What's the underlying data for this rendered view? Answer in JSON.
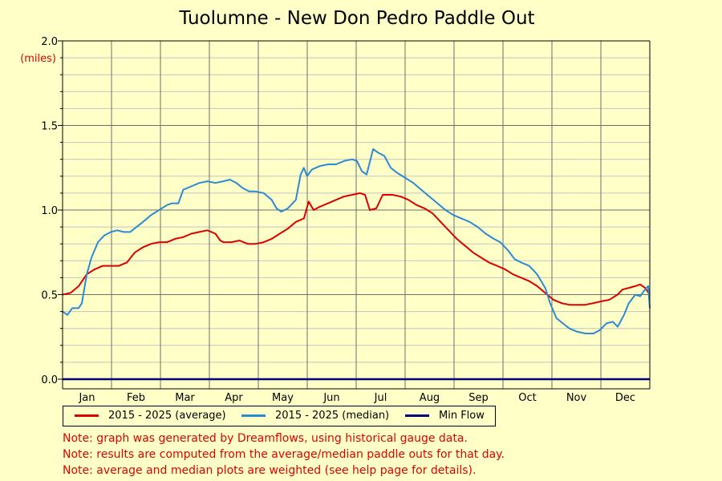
{
  "chart_data": {
    "type": "line",
    "title": "Tuolumne - New Don Pedro Paddle Out",
    "ylabel": "(miles)",
    "ylim": [
      0,
      2
    ],
    "yticks": [
      "0.0",
      "0.5",
      "1.0",
      "1.5",
      "2.0"
    ],
    "months": [
      "Jan",
      "Feb",
      "Mar",
      "Apr",
      "May",
      "Jun",
      "Jul",
      "Aug",
      "Sep",
      "Oct",
      "Nov",
      "Dec"
    ],
    "grid": true,
    "legend_position": "bottom",
    "series": [
      {
        "name": "2015 - 2025 (average)",
        "color": "#dd0000",
        "points": [
          [
            0,
            0.5
          ],
          [
            5,
            0.51
          ],
          [
            10,
            0.55
          ],
          [
            15,
            0.62
          ],
          [
            20,
            0.65
          ],
          [
            25,
            0.67
          ],
          [
            30,
            0.67
          ],
          [
            35,
            0.67
          ],
          [
            40,
            0.69
          ],
          [
            45,
            0.75
          ],
          [
            50,
            0.78
          ],
          [
            55,
            0.8
          ],
          [
            60,
            0.81
          ],
          [
            65,
            0.81
          ],
          [
            70,
            0.83
          ],
          [
            75,
            0.84
          ],
          [
            80,
            0.86
          ],
          [
            85,
            0.87
          ],
          [
            90,
            0.88
          ],
          [
            95,
            0.86
          ],
          [
            98,
            0.82
          ],
          [
            100,
            0.81
          ],
          [
            105,
            0.81
          ],
          [
            110,
            0.82
          ],
          [
            115,
            0.8
          ],
          [
            120,
            0.8
          ],
          [
            125,
            0.81
          ],
          [
            130,
            0.83
          ],
          [
            135,
            0.86
          ],
          [
            140,
            0.89
          ],
          [
            145,
            0.93
          ],
          [
            150,
            0.95
          ],
          [
            153,
            1.05
          ],
          [
            156,
            1.0
          ],
          [
            160,
            1.02
          ],
          [
            165,
            1.04
          ],
          [
            170,
            1.06
          ],
          [
            175,
            1.08
          ],
          [
            180,
            1.09
          ],
          [
            185,
            1.1
          ],
          [
            188,
            1.09
          ],
          [
            191,
            1.0
          ],
          [
            195,
            1.01
          ],
          [
            199,
            1.09
          ],
          [
            205,
            1.09
          ],
          [
            210,
            1.08
          ],
          [
            215,
            1.06
          ],
          [
            220,
            1.03
          ],
          [
            225,
            1.01
          ],
          [
            230,
            0.98
          ],
          [
            235,
            0.93
          ],
          [
            240,
            0.88
          ],
          [
            245,
            0.83
          ],
          [
            250,
            0.79
          ],
          [
            255,
            0.75
          ],
          [
            260,
            0.72
          ],
          [
            265,
            0.69
          ],
          [
            270,
            0.67
          ],
          [
            275,
            0.65
          ],
          [
            280,
            0.62
          ],
          [
            285,
            0.6
          ],
          [
            290,
            0.58
          ],
          [
            295,
            0.55
          ],
          [
            300,
            0.51
          ],
          [
            305,
            0.47
          ],
          [
            310,
            0.45
          ],
          [
            315,
            0.44
          ],
          [
            320,
            0.44
          ],
          [
            325,
            0.44
          ],
          [
            330,
            0.45
          ],
          [
            335,
            0.46
          ],
          [
            340,
            0.47
          ],
          [
            345,
            0.5
          ],
          [
            348,
            0.53
          ],
          [
            352,
            0.54
          ],
          [
            356,
            0.55
          ],
          [
            359,
            0.56
          ],
          [
            362,
            0.54
          ],
          [
            365,
            0.5
          ]
        ]
      },
      {
        "name": "2015 - 2025 (median)",
        "color": "#2b8ad4",
        "points": [
          [
            0,
            0.4
          ],
          [
            3,
            0.38
          ],
          [
            6,
            0.42
          ],
          [
            10,
            0.42
          ],
          [
            12,
            0.45
          ],
          [
            15,
            0.62
          ],
          [
            18,
            0.72
          ],
          [
            22,
            0.81
          ],
          [
            26,
            0.85
          ],
          [
            30,
            0.87
          ],
          [
            34,
            0.88
          ],
          [
            38,
            0.87
          ],
          [
            42,
            0.87
          ],
          [
            46,
            0.9
          ],
          [
            50,
            0.93
          ],
          [
            55,
            0.97
          ],
          [
            60,
            1.0
          ],
          [
            65,
            1.03
          ],
          [
            68,
            1.04
          ],
          [
            72,
            1.04
          ],
          [
            75,
            1.12
          ],
          [
            80,
            1.14
          ],
          [
            85,
            1.16
          ],
          [
            90,
            1.17
          ],
          [
            95,
            1.16
          ],
          [
            100,
            1.17
          ],
          [
            104,
            1.18
          ],
          [
            108,
            1.16
          ],
          [
            112,
            1.13
          ],
          [
            116,
            1.11
          ],
          [
            120,
            1.11
          ],
          [
            125,
            1.1
          ],
          [
            130,
            1.06
          ],
          [
            133,
            1.01
          ],
          [
            136,
            0.99
          ],
          [
            140,
            1.01
          ],
          [
            145,
            1.06
          ],
          [
            148,
            1.21
          ],
          [
            150,
            1.25
          ],
          [
            152,
            1.2
          ],
          [
            155,
            1.24
          ],
          [
            160,
            1.26
          ],
          [
            165,
            1.27
          ],
          [
            170,
            1.27
          ],
          [
            175,
            1.29
          ],
          [
            180,
            1.3
          ],
          [
            183,
            1.29
          ],
          [
            186,
            1.23
          ],
          [
            189,
            1.21
          ],
          [
            193,
            1.36
          ],
          [
            196,
            1.34
          ],
          [
            200,
            1.32
          ],
          [
            204,
            1.25
          ],
          [
            208,
            1.22
          ],
          [
            213,
            1.19
          ],
          [
            218,
            1.16
          ],
          [
            223,
            1.12
          ],
          [
            228,
            1.08
          ],
          [
            233,
            1.04
          ],
          [
            238,
            1.0
          ],
          [
            243,
            0.97
          ],
          [
            248,
            0.95
          ],
          [
            253,
            0.93
          ],
          [
            258,
            0.9
          ],
          [
            263,
            0.86
          ],
          [
            268,
            0.83
          ],
          [
            272,
            0.81
          ],
          [
            277,
            0.76
          ],
          [
            281,
            0.71
          ],
          [
            285,
            0.69
          ],
          [
            290,
            0.67
          ],
          [
            295,
            0.62
          ],
          [
            300,
            0.54
          ],
          [
            303,
            0.45
          ],
          [
            307,
            0.36
          ],
          [
            311,
            0.33
          ],
          [
            315,
            0.3
          ],
          [
            320,
            0.28
          ],
          [
            325,
            0.27
          ],
          [
            330,
            0.27
          ],
          [
            334,
            0.29
          ],
          [
            338,
            0.33
          ],
          [
            342,
            0.34
          ],
          [
            345,
            0.31
          ],
          [
            349,
            0.38
          ],
          [
            352,
            0.45
          ],
          [
            356,
            0.5
          ],
          [
            359,
            0.49
          ],
          [
            362,
            0.53
          ],
          [
            364,
            0.55
          ],
          [
            365,
            0.42
          ]
        ]
      },
      {
        "name": "Min Flow",
        "color": "#00007a",
        "points": [
          [
            0,
            0.0
          ],
          [
            365,
            0.0
          ]
        ]
      }
    ]
  },
  "notes": [
    "Note: graph was generated by Dreamflows, using historical gauge data.",
    "Note: results are computed from the average/median paddle outs for that day.",
    "Note: average and median plots are weighted (see help page for details)."
  ]
}
